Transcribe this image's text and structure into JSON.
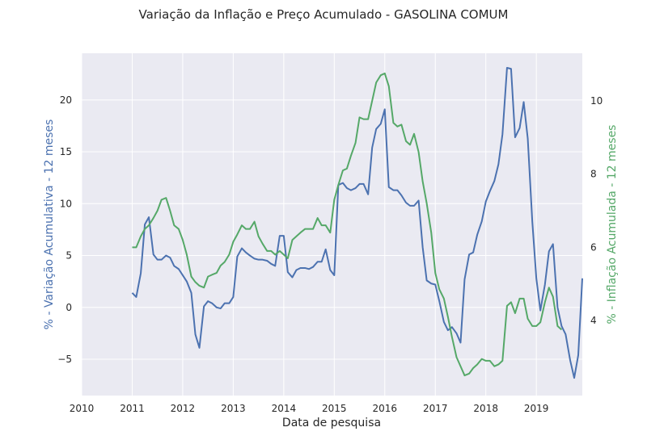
{
  "chart_data": {
    "type": "line",
    "title": "Variação da Inflação e Preço Acumulado - GASOLINA COMUM",
    "xlabel": "Data de pesquisa",
    "ylabel_left": "% - Variação Acumulativa - 12 meses",
    "ylabel_right": "% - Inflação Acumulada - 12 meses",
    "x_ticks": [
      "2010",
      "2011",
      "2012",
      "2013",
      "2014",
      "2015",
      "2016",
      "2017",
      "2018",
      "2019"
    ],
    "x_range": [
      2010.0,
      2019.91
    ],
    "y_left_ticks": [
      "−5",
      "0",
      "5",
      "10",
      "15",
      "20"
    ],
    "y_left_tick_values": [
      -5,
      0,
      5,
      10,
      15,
      20
    ],
    "y_left_range": [
      -8.5,
      24.5
    ],
    "y_right_ticks": [
      "4",
      "6",
      "8",
      "10"
    ],
    "y_right_tick_values": [
      4,
      6,
      8,
      10
    ],
    "y_right_range": [
      1.95,
      11.3
    ],
    "grid": true,
    "colors": {
      "left": "#4c72b0",
      "right": "#55a868",
      "background": "#eaeaf2",
      "grid": "#ffffff"
    },
    "series": [
      {
        "axis": "left",
        "x": [
          2011.0,
          2011.08,
          2011.17,
          2011.25,
          2011.33,
          2011.42,
          2011.5,
          2011.58,
          2011.67,
          2011.75,
          2011.83,
          2011.92,
          2012.0,
          2012.08,
          2012.17,
          2012.25,
          2012.33,
          2012.42,
          2012.5,
          2012.58,
          2012.67,
          2012.75,
          2012.83,
          2012.92,
          2013.0,
          2013.08,
          2013.17,
          2013.25,
          2013.33,
          2013.42,
          2013.5,
          2013.58,
          2013.67,
          2013.75,
          2013.83,
          2013.92,
          2014.0,
          2014.08,
          2014.17,
          2014.25,
          2014.33,
          2014.42,
          2014.5,
          2014.58,
          2014.67,
          2014.75,
          2014.83,
          2014.92,
          2015.0,
          2015.08,
          2015.17,
          2015.25,
          2015.33,
          2015.42,
          2015.5,
          2015.58,
          2015.67,
          2015.75,
          2015.83,
          2015.92,
          2016.0,
          2016.08,
          2016.17,
          2016.25,
          2016.33,
          2016.42,
          2016.5,
          2016.58,
          2016.67,
          2016.75,
          2016.83,
          2016.92,
          2017.0,
          2017.08,
          2017.17,
          2017.25,
          2017.33,
          2017.42,
          2017.5,
          2017.58,
          2017.67,
          2017.75,
          2017.83,
          2017.92,
          2018.0,
          2018.08,
          2018.17,
          2018.25,
          2018.33,
          2018.42,
          2018.5,
          2018.58,
          2018.67,
          2018.75,
          2018.83,
          2018.92,
          2019.0,
          2019.08,
          2019.17,
          2019.25,
          2019.33,
          2019.42,
          2019.5,
          2019.58,
          2019.67,
          2019.75,
          2019.83,
          2019.91
        ],
        "values": [
          1.4,
          1.0,
          3.3,
          8.0,
          8.7,
          5.1,
          4.6,
          4.6,
          5.0,
          4.8,
          4.0,
          3.7,
          3.1,
          2.5,
          1.4,
          -2.6,
          -3.9,
          0.1,
          0.6,
          0.4,
          0.0,
          -0.1,
          0.4,
          0.4,
          1.0,
          4.9,
          5.7,
          5.3,
          5.0,
          4.7,
          4.6,
          4.6,
          4.5,
          4.2,
          4.0,
          6.9,
          6.9,
          3.4,
          2.9,
          3.6,
          3.8,
          3.8,
          3.7,
          3.9,
          4.4,
          4.4,
          5.6,
          3.6,
          3.1,
          11.8,
          12.0,
          11.5,
          11.3,
          11.5,
          11.9,
          11.9,
          10.9,
          15.4,
          17.2,
          17.7,
          19.1,
          11.6,
          11.3,
          11.3,
          10.8,
          10.1,
          9.8,
          9.8,
          10.3,
          5.8,
          2.6,
          2.3,
          2.2,
          0.6,
          -1.4,
          -2.2,
          -1.9,
          -2.5,
          -3.4,
          2.7,
          5.1,
          5.3,
          7.0,
          8.3,
          10.2,
          11.2,
          12.2,
          13.8,
          16.7,
          23.1,
          23.0,
          16.4,
          17.3,
          19.8,
          16.3,
          8.3,
          2.8,
          -0.3,
          2.2,
          5.4,
          6.1,
          0.0,
          -1.8,
          -2.6,
          -5.1,
          -6.8,
          -4.6,
          2.8
        ]
      },
      {
        "axis": "right",
        "x": [
          2011.0,
          2011.08,
          2011.17,
          2011.25,
          2011.33,
          2011.42,
          2011.5,
          2011.58,
          2011.67,
          2011.75,
          2011.83,
          2011.92,
          2012.0,
          2012.08,
          2012.17,
          2012.25,
          2012.33,
          2012.42,
          2012.5,
          2012.58,
          2012.67,
          2012.75,
          2012.83,
          2012.92,
          2013.0,
          2013.08,
          2013.17,
          2013.25,
          2013.33,
          2013.42,
          2013.5,
          2013.58,
          2013.67,
          2013.75,
          2013.83,
          2013.92,
          2014.0,
          2014.08,
          2014.17,
          2014.25,
          2014.33,
          2014.42,
          2014.5,
          2014.58,
          2014.67,
          2014.75,
          2014.83,
          2014.92,
          2015.0,
          2015.08,
          2015.17,
          2015.25,
          2015.33,
          2015.42,
          2015.5,
          2015.58,
          2015.67,
          2015.75,
          2015.83,
          2015.92,
          2016.0,
          2016.08,
          2016.17,
          2016.25,
          2016.33,
          2016.42,
          2016.5,
          2016.58,
          2016.67,
          2016.75,
          2016.83,
          2016.92,
          2017.0,
          2017.08,
          2017.17,
          2017.25,
          2017.33,
          2017.42,
          2017.5,
          2017.58,
          2017.67,
          2017.75,
          2017.83,
          2017.92,
          2018.0,
          2018.08,
          2018.17,
          2018.25,
          2018.33,
          2018.42,
          2018.5,
          2018.58,
          2018.67,
          2018.75,
          2018.83,
          2018.92,
          2019.0,
          2019.08,
          2019.17,
          2019.25,
          2019.33,
          2019.42,
          2019.5
        ],
        "values": [
          6.0,
          6.0,
          6.3,
          6.5,
          6.6,
          6.8,
          7.0,
          7.3,
          7.35,
          7.0,
          6.6,
          6.5,
          6.2,
          5.8,
          5.2,
          5.05,
          4.95,
          4.9,
          5.2,
          5.25,
          5.3,
          5.5,
          5.6,
          5.8,
          6.15,
          6.35,
          6.6,
          6.5,
          6.5,
          6.7,
          6.3,
          6.1,
          5.9,
          5.9,
          5.8,
          5.9,
          5.8,
          5.7,
          6.2,
          6.3,
          6.4,
          6.5,
          6.5,
          6.5,
          6.8,
          6.6,
          6.6,
          6.4,
          7.3,
          7.7,
          8.1,
          8.15,
          8.5,
          8.85,
          9.55,
          9.5,
          9.5,
          10.0,
          10.5,
          10.7,
          10.75,
          10.4,
          9.4,
          9.3,
          9.35,
          8.9,
          8.8,
          9.1,
          8.6,
          7.8,
          7.2,
          6.4,
          5.3,
          4.85,
          4.6,
          4.1,
          3.55,
          3.0,
          2.75,
          2.5,
          2.55,
          2.7,
          2.8,
          2.95,
          2.9,
          2.9,
          2.75,
          2.8,
          2.9,
          4.4,
          4.5,
          4.2,
          4.6,
          4.6,
          4.05,
          3.85,
          3.85,
          3.95,
          4.5,
          4.9,
          4.65,
          3.85,
          3.75
        ]
      }
    ]
  }
}
